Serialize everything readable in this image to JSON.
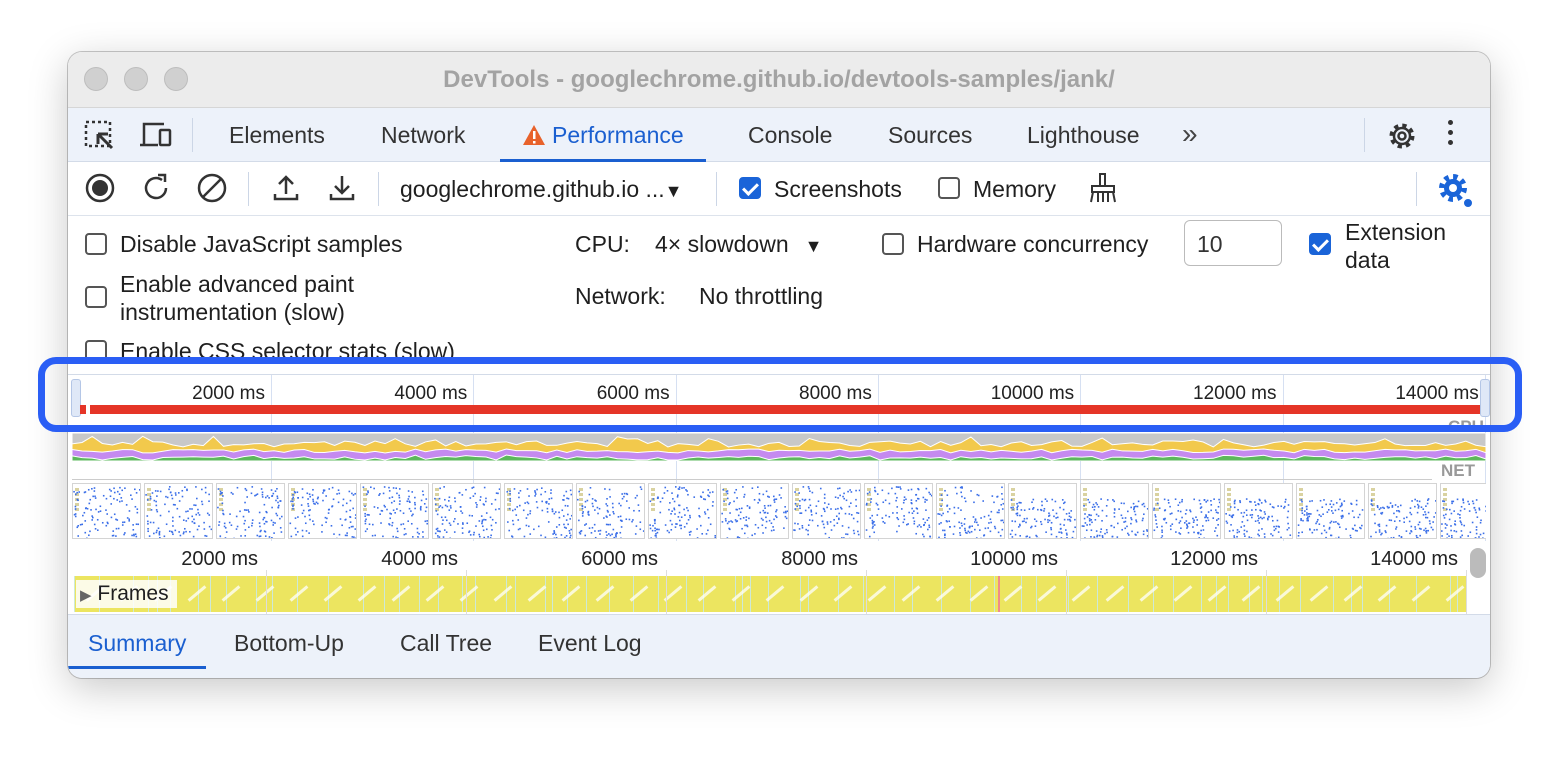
{
  "window": {
    "title": "DevTools - googlechrome.github.io/devtools-samples/jank/"
  },
  "tabs": [
    {
      "label": "Elements"
    },
    {
      "label": "Network"
    },
    {
      "label": "Performance",
      "active": true,
      "icon": "warning-icon"
    },
    {
      "label": "Console"
    },
    {
      "label": "Sources"
    },
    {
      "label": "Lighthouse"
    }
  ],
  "toolbar": {
    "target": "googlechrome.github.io ...",
    "screenshots_label": "Screenshots",
    "screenshots_checked": true,
    "memory_label": "Memory",
    "memory_checked": false
  },
  "settings": {
    "disable_js": "Disable JavaScript samples",
    "adv_paint_1": "Enable advanced paint",
    "adv_paint_2": "instrumentation (slow)",
    "css_stats": "Enable CSS selector stats (slow)",
    "cpu_label": "CPU:",
    "cpu_value": "4× slowdown",
    "network_label": "Network:",
    "network_value": "No throttling",
    "hw_label": "Hardware concurrency",
    "hw_value": "10",
    "ext_1": "Extension",
    "ext_2": "data",
    "ext_checked": true
  },
  "overview": {
    "ticks": [
      "2000 ms",
      "4000 ms",
      "6000 ms",
      "8000 ms",
      "10000 ms",
      "12000 ms",
      "14000 ms"
    ],
    "cpu_label": "CPU",
    "net_label": "NET",
    "screenshot_count": 20
  },
  "main": {
    "ticks": [
      "2000 ms",
      "4000 ms",
      "6000 ms",
      "8000 ms",
      "10000 ms",
      "12000 ms",
      "14000 ms"
    ],
    "frames_label": "Frames"
  },
  "bottom_tabs": [
    {
      "label": "Summary",
      "active": true
    },
    {
      "label": "Bottom-Up"
    },
    {
      "label": "Call Tree"
    },
    {
      "label": "Event Log"
    }
  ],
  "colors": {
    "accent": "#1a5fd0",
    "highlight": "#2a5ef5",
    "long_task": "#e53527",
    "frames": "#ece560",
    "scripting": "#f2c94c",
    "rendering": "#c58af0",
    "painting": "#5cb85c"
  }
}
